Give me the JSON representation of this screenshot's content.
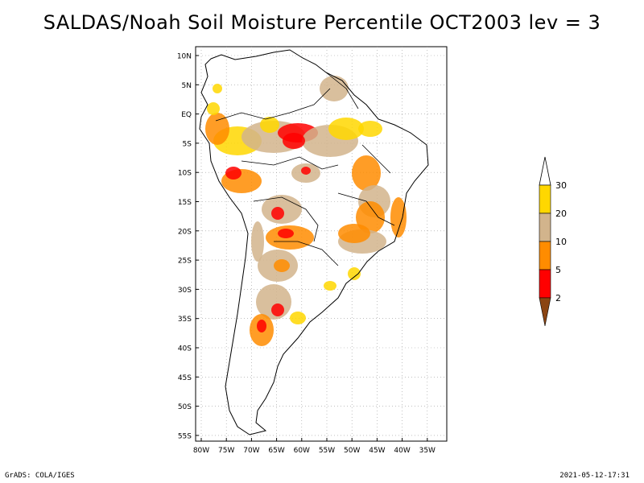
{
  "title": "SALDAS/Noah Soil Moisture Percentile OCT2003 lev = 3",
  "footer": {
    "left": "GrADS: COLA/IGES",
    "right": "2021-05-12-17:31"
  },
  "axes": {
    "lat_labels": [
      "10N",
      "5N",
      "EQ",
      "5S",
      "10S",
      "15S",
      "20S",
      "25S",
      "30S",
      "35S",
      "40S",
      "45S",
      "50S",
      "55S"
    ],
    "lon_labels": [
      "80W",
      "75W",
      "70W",
      "65W",
      "60W",
      "55W",
      "50W",
      "45W",
      "40W",
      "35W"
    ]
  },
  "legend": {
    "labels": [
      "2",
      "5",
      "10",
      "20",
      "30"
    ],
    "colors": [
      "#8b4513",
      "#ff0000",
      "#ff8c00",
      "#d2b48c",
      "#ffd700"
    ]
  },
  "colors": {
    "dark_brown": "#8b4513",
    "red": "#ff0000",
    "orange": "#ff8c00",
    "tan": "#d2b48c",
    "gold": "#ffd700"
  }
}
